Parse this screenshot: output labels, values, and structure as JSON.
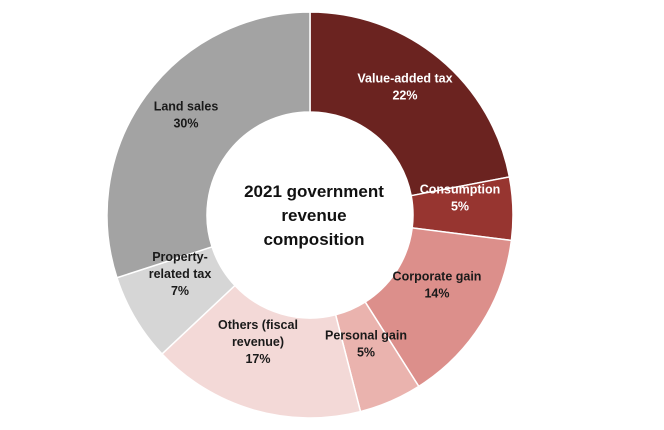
{
  "chart_data": {
    "type": "pie",
    "style": "donut",
    "center_title": [
      "2021 government",
      "revenue",
      "composition"
    ],
    "slices": [
      {
        "label": [
          "Value-added tax",
          "22%"
        ],
        "value": 22,
        "color": "#6b2320",
        "label_color": "#ffffff"
      },
      {
        "label": [
          "Consumption",
          "5%"
        ],
        "value": 5,
        "color": "#973530",
        "label_color": "#ffffff"
      },
      {
        "label": [
          "Corporate gain",
          "14%"
        ],
        "value": 14,
        "color": "#dc8f8b",
        "label_color": "#1a1a1a"
      },
      {
        "label": [
          "Personal gain",
          "5%"
        ],
        "value": 5,
        "color": "#eab3ae",
        "label_color": "#1a1a1a"
      },
      {
        "label": [
          "Others (fiscal",
          "revenue)",
          "17%"
        ],
        "value": 17,
        "color": "#f3d9d7",
        "label_color": "#1a1a1a"
      },
      {
        "label": [
          "Property-",
          "related tax",
          "7%"
        ],
        "value": 7,
        "color": "#d6d6d6",
        "label_color": "#1a1a1a"
      },
      {
        "label": [
          "Land sales",
          "30%"
        ],
        "value": 30,
        "color": "#a3a3a3",
        "label_color": "#1a1a1a"
      }
    ]
  }
}
